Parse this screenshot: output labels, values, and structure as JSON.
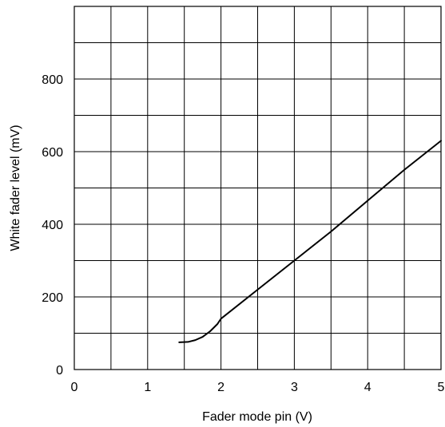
{
  "chart_data": {
    "type": "line",
    "title": "",
    "xlabel": "Fader mode pin (V)",
    "ylabel": "White fader level (mV)",
    "xlim": [
      0,
      5
    ],
    "ylim": [
      0,
      1000
    ],
    "x_ticks": [
      0,
      1,
      2,
      3,
      4,
      5
    ],
    "y_ticks": [
      0,
      200,
      400,
      600,
      800
    ],
    "grid": true,
    "grid_x_step": 0.5,
    "grid_y_step": 100,
    "series": [
      {
        "color": "#000000",
        "x": [
          1.43,
          1.55,
          1.65,
          1.75,
          1.85,
          1.95,
          2.0,
          2.5,
          3.0,
          3.5,
          4.0,
          4.5,
          5.0
        ],
        "y": [
          75,
          76,
          81,
          90,
          105,
          125,
          140,
          220,
          300,
          380,
          465,
          550,
          630
        ]
      }
    ]
  }
}
